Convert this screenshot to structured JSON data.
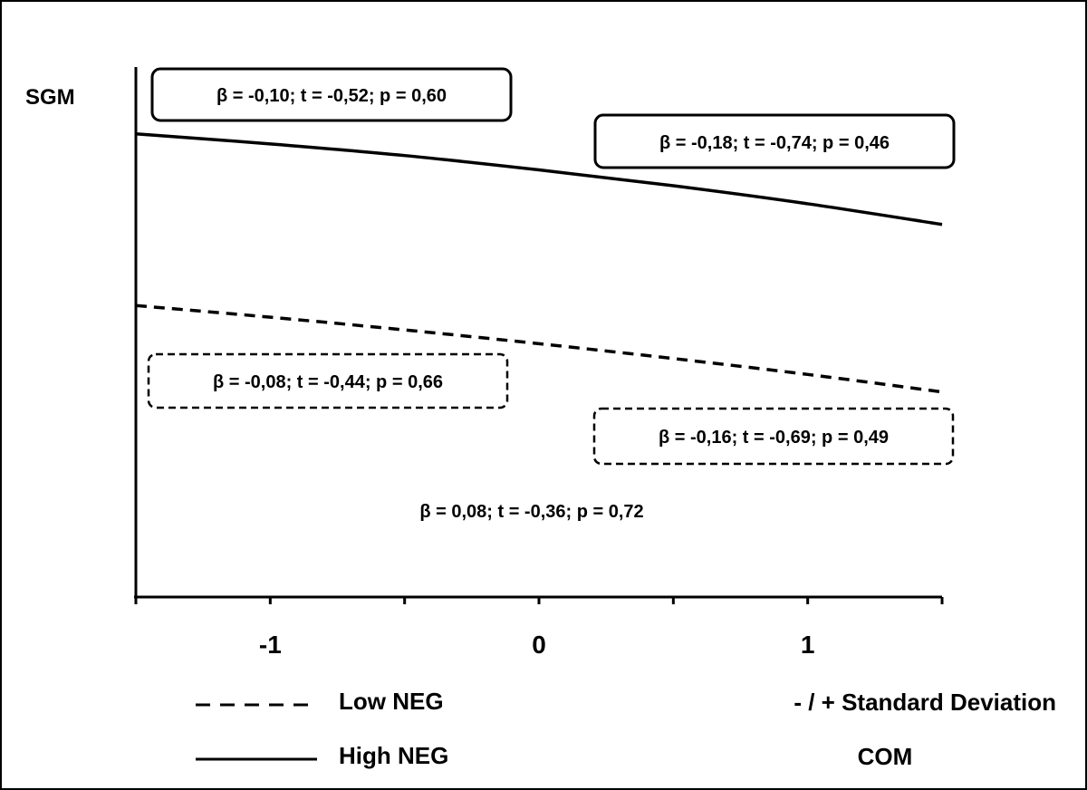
{
  "chart_data": {
    "type": "line",
    "ylabel": "SGM",
    "xlabel": "COM",
    "x_scale_note": "- / + Standard Deviation",
    "x": [
      -1.5,
      -1,
      -0.5,
      0,
      0.5,
      1,
      1.5
    ],
    "xticks": [
      -1,
      0,
      1
    ],
    "xlim": [
      -1.5,
      1.5
    ],
    "ylim": [
      0,
      10
    ],
    "grid": false,
    "legend_position": "bottom-left",
    "series": [
      {
        "name": "Low NEG",
        "style": "dashed",
        "values": [
          5.5,
          5.28,
          5.04,
          4.78,
          4.5,
          4.2,
          3.87
        ]
      },
      {
        "name": "High NEG",
        "style": "solid",
        "values": [
          8.74,
          8.55,
          8.33,
          8.06,
          7.76,
          7.42,
          7.03
        ]
      }
    ],
    "annotations": [
      {
        "id": "ann-high-left",
        "text": "β = -0,10; t = -0,52; p = 0,60",
        "border": "solid"
      },
      {
        "id": "ann-high-right",
        "text": "β = -0,18; t = -0,74; p = 0,46",
        "border": "solid"
      },
      {
        "id": "ann-low-left",
        "text": "β = -0,08; t = -0,44; p = 0,66",
        "border": "dashed"
      },
      {
        "id": "ann-low-right",
        "text": "β = -0,16; t = -0,69; p = 0,49",
        "border": "dashed"
      },
      {
        "id": "ann-interaction",
        "text": "β = 0,08; t = -0,36; p = 0,72",
        "border": "none"
      }
    ]
  },
  "colors": {
    "line": "#000000",
    "background": "#ffffff"
  }
}
